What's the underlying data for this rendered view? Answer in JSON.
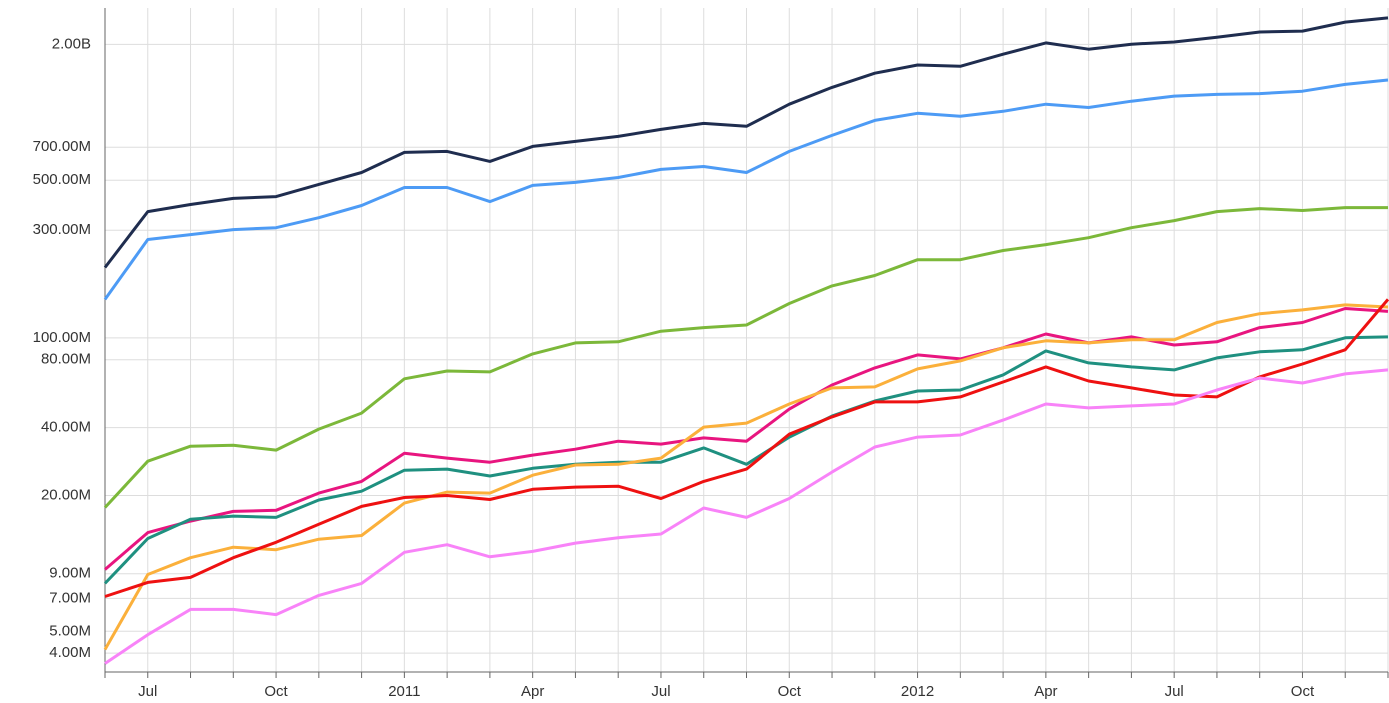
{
  "chart_data": {
    "type": "line",
    "log_scale": true,
    "grid": true,
    "categories": [
      null,
      "Jul",
      null,
      null,
      "Oct",
      null,
      null,
      "2011",
      null,
      null,
      "Apr",
      null,
      null,
      "Jul",
      null,
      null,
      "Oct",
      null,
      null,
      "2012",
      null,
      null,
      "Apr",
      null,
      null,
      "Jul",
      null,
      null,
      "Oct",
      null,
      null
    ],
    "ylim": [
      3300000.0,
      2900000000.0
    ],
    "yticks": [
      {
        "value": 4000000.0,
        "label": "4.00M"
      },
      {
        "value": 5000000.0,
        "label": "5.00M"
      },
      {
        "value": 7000000.0,
        "label": "7.00M"
      },
      {
        "value": 9000000.0,
        "label": "9.00M"
      },
      {
        "value": 20000000.0,
        "label": "20.00M"
      },
      {
        "value": 40000000.0,
        "label": "40.00M"
      },
      {
        "value": 80000000.0,
        "label": "80.00M"
      },
      {
        "value": 100000000.0,
        "label": "100.00M"
      },
      {
        "value": 300000000.0,
        "label": "300.00M"
      },
      {
        "value": 500000000.0,
        "label": "500.00M"
      },
      {
        "value": 700000000.0,
        "label": "700.00M"
      },
      {
        "value": 2000000000.0,
        "label": "2.00B"
      }
    ],
    "series": [
      {
        "color": "#1f2d4f",
        "values": [
          205000000.0,
          363000000.0,
          390000000.0,
          415000000.0,
          423000000.0,
          479000000.0,
          541000000.0,
          664000000.0,
          671000000.0,
          606000000.0,
          706000000.0,
          743000000.0,
          782000000.0,
          840000000.0,
          893000000.0,
          867000000.0,
          1086000000.0,
          1290000000.0,
          1490000000.0,
          1620000000.0,
          1600000000.0,
          1810000000.0,
          2030000000.0,
          1905000000.0,
          2005000000.0,
          2050000000.0,
          2150000000.0,
          2270000000.0,
          2290000000.0,
          2510000000.0,
          2620000000.0
        ]
      },
      {
        "color": "#4d9bf5",
        "values": [
          148000000.0,
          273000000.0,
          287000000.0,
          302000000.0,
          308000000.0,
          341000000.0,
          386000000.0,
          464000000.0,
          464000000.0,
          402000000.0,
          474000000.0,
          489000000.0,
          514000000.0,
          558000000.0,
          575000000.0,
          541000000.0,
          671000000.0,
          790000000.0,
          921000000.0,
          990000000.0,
          960000000.0,
          1010000000.0,
          1086000000.0,
          1050000000.0,
          1120000000.0,
          1180000000.0,
          1200000000.0,
          1210000000.0,
          1240000000.0,
          1330000000.0,
          1390000000.0
        ]
      },
      {
        "color": "#7cb83a",
        "values": [
          17700000.0,
          28400000.0,
          33100000.0,
          33400000.0,
          31800000.0,
          39400000.0,
          46400000.0,
          65800000.0,
          71300000.0,
          70600000.0,
          84900000.0,
          95000000.0,
          96000000.0,
          107000000.0,
          111000000.0,
          114000000.0,
          142000000.0,
          170000000.0,
          189000000.0,
          222000000.0,
          222000000.0,
          244000000.0,
          259000000.0,
          278000000.0,
          308000000.0,
          331000000.0,
          363000000.0,
          374000000.0,
          367000000.0,
          378000000.0,
          378000000.0
        ]
      },
      {
        "color": "#e8157f",
        "values": [
          9400000.0,
          13700000.0,
          15400000.0,
          17000000.0,
          17200000.0,
          20500000.0,
          23100000.0,
          30800000.0,
          29300000.0,
          28100000.0,
          30200000.0,
          32100000.0,
          34800000.0,
          33800000.0,
          36000000.0,
          34800000.0,
          48300000.0,
          61800000.0,
          73600000.0,
          84000000.0,
          80700000.0,
          90300000.0,
          104000000.0,
          95000000.0,
          101000000.0,
          93000000.0,
          96000000.0,
          111000000.0,
          117000000.0,
          135000000.0,
          131000000.0
        ]
      },
      {
        "color": "#1f9080",
        "values": [
          8150000.0,
          12900000.0,
          15700000.0,
          16200000.0,
          16000000.0,
          19100000.0,
          20900000.0,
          25900000.0,
          26200000.0,
          24400000.0,
          26400000.0,
          27500000.0,
          28100000.0,
          28100000.0,
          32500000.0,
          27500000.0,
          36300000.0,
          45000000.0,
          52500000.0,
          58100000.0,
          58700000.0,
          68500000.0,
          87500000.0,
          77400000.0,
          74300000.0,
          72100000.0,
          81500000.0,
          86700000.0,
          88500000.0,
          100000000.0,
          101000000.0
        ]
      },
      {
        "color": "#fbb03b",
        "values": [
          4150000.0,
          8930000.0,
          10600000.0,
          11800000.0,
          11500000.0,
          12800000.0,
          13300000.0,
          18500000.0,
          20700000.0,
          20500000.0,
          24600000.0,
          27300000.0,
          27500000.0,
          29300000.0,
          40200000.0,
          41900000.0,
          50900000.0,
          60000000.0,
          60600000.0,
          72800000.0,
          79000000.0,
          90300000.0,
          97000000.0,
          95000000.0,
          98000000.0,
          98000000.0,
          117000000.0,
          128000000.0,
          133000000.0,
          140000000.0,
          137000000.0
        ]
      },
      {
        "color": "#ee1111",
        "values": [
          7130000.0,
          8240000.0,
          8670000.0,
          10600000.0,
          12400000.0,
          14900000.0,
          17900000.0,
          19600000.0,
          20000000.0,
          19200000.0,
          21300000.0,
          21800000.0,
          22000000.0,
          19400000.0,
          23100000.0,
          26200000.0,
          37400000.0,
          44600000.0,
          52000000.0,
          52000000.0,
          54700000.0,
          63700000.0,
          74300000.0,
          64400000.0,
          60000000.0,
          55800000.0,
          54700000.0,
          67100000.0,
          76600000.0,
          88500000.0,
          148000000.0
        ]
      },
      {
        "color": "#f883f8",
        "values": [
          3600000.0,
          4830000.0,
          6250000.0,
          6250000.0,
          5930000.0,
          7210000.0,
          8150000.0,
          11200000.0,
          12100000.0,
          10700000.0,
          11300000.0,
          12300000.0,
          13000000.0,
          13500000.0,
          17600000.0,
          16000000.0,
          19400000.0,
          25400000.0,
          32800000.0,
          36300000.0,
          37100000.0,
          43200000.0,
          50900000.0,
          48900000.0,
          49900000.0,
          50900000.0,
          58700000.0,
          66400000.0,
          63100000.0,
          69200000.0,
          72100000.0
        ]
      }
    ]
  }
}
